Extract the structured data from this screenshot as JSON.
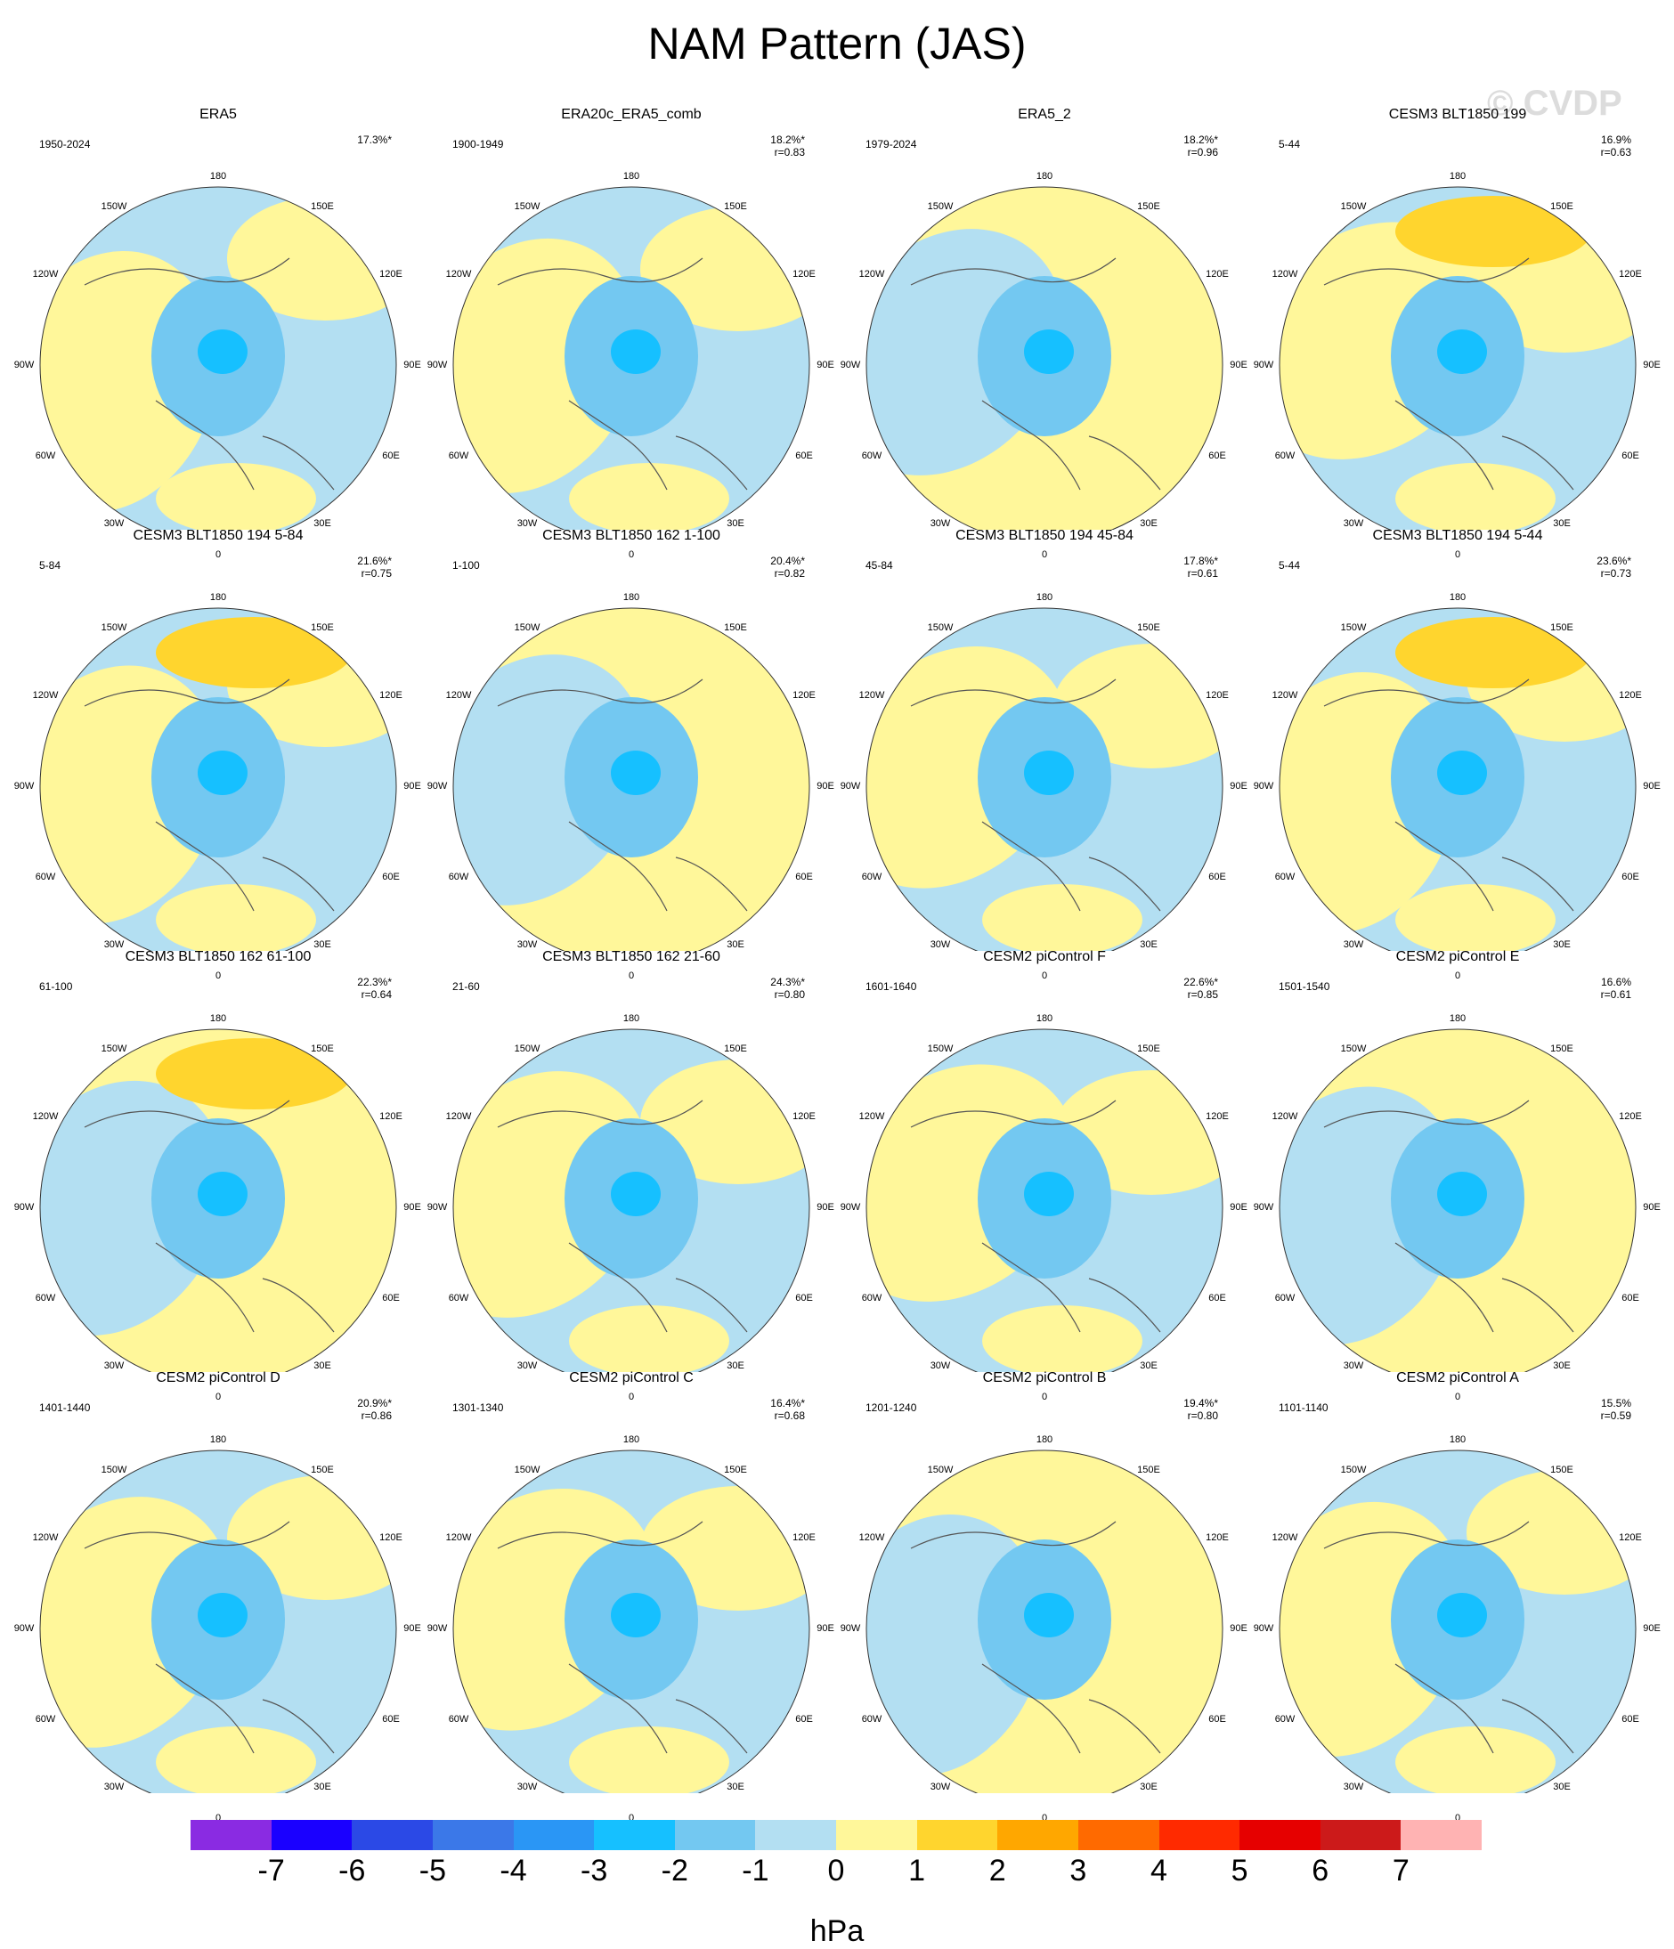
{
  "title": "NAM Pattern (JAS)",
  "watermark": "© CVDP",
  "colorbar": {
    "unit": "hPa",
    "ticks": [
      "-7",
      "-6",
      "-5",
      "-4",
      "-3",
      "-2",
      "-1",
      "0",
      "1",
      "2",
      "3",
      "4",
      "5",
      "6",
      "7"
    ],
    "colors": [
      "#8a2be2",
      "#1a00ff",
      "#2b49e6",
      "#3b78e8",
      "#2a96f5",
      "#16c0ff",
      "#73c8f1",
      "#b3dff2",
      "#fff79a",
      "#ffd52e",
      "#ffa700",
      "#ff6a00",
      "#ff2a00",
      "#e60000",
      "#cc1a1a",
      "#ffb3b3"
    ]
  },
  "map_labels": {
    "top": "180",
    "bottom": "0",
    "ul1": "150W",
    "ur1": "150E",
    "ul2": "120W",
    "ur2": "120E",
    "left": "90W",
    "right": "90E",
    "ll2": "60W",
    "lr2": "60E",
    "ll1": "30W",
    "lr1": "30E"
  },
  "panels": [
    {
      "title": "ERA5",
      "years": "1950-2024",
      "pct": "17.3%*",
      "r": ""
    },
    {
      "title": "ERA20c_ERA5_comb",
      "years": "1900-1949",
      "pct": "18.2%*",
      "r": "r=0.83"
    },
    {
      "title": "ERA5_2",
      "years": "1979-2024",
      "pct": "18.2%*",
      "r": "r=0.96"
    },
    {
      "title": "CESM3 BLT1850 199",
      "years": "5-44",
      "pct": "16.9%",
      "r": "r=0.63"
    },
    {
      "title": "CESM3 BLT1850 194 5-84",
      "years": "5-84",
      "pct": "21.6%*",
      "r": "r=0.75"
    },
    {
      "title": "CESM3 BLT1850 162 1-100",
      "years": "1-100",
      "pct": "20.4%*",
      "r": "r=0.82"
    },
    {
      "title": "CESM3 BLT1850 194 45-84",
      "years": "45-84",
      "pct": "17.8%*",
      "r": "r=0.61"
    },
    {
      "title": "CESM3 BLT1850 194 5-44",
      "years": "5-44",
      "pct": "23.6%*",
      "r": "r=0.73"
    },
    {
      "title": "CESM3 BLT1850 162 61-100",
      "years": "61-100",
      "pct": "22.3%*",
      "r": "r=0.64"
    },
    {
      "title": "CESM3 BLT1850 162 21-60",
      "years": "21-60",
      "pct": "24.3%*",
      "r": "r=0.80"
    },
    {
      "title": "CESM2 piControl F",
      "years": "1601-1640",
      "pct": "22.6%*",
      "r": "r=0.85"
    },
    {
      "title": "CESM2 piControl E",
      "years": "1501-1540",
      "pct": "16.6%",
      "r": "r=0.61"
    },
    {
      "title": "CESM2 piControl D",
      "years": "1401-1440",
      "pct": "20.9%*",
      "r": "r=0.86"
    },
    {
      "title": "CESM2 piControl C",
      "years": "1301-1340",
      "pct": "16.4%*",
      "r": "r=0.68"
    },
    {
      "title": "CESM2 piControl B",
      "years": "1201-1240",
      "pct": "19.4%*",
      "r": "r=0.80"
    },
    {
      "title": "CESM2 piControl A",
      "years": "1101-1140",
      "pct": "15.5%",
      "r": "r=0.59"
    }
  ]
}
